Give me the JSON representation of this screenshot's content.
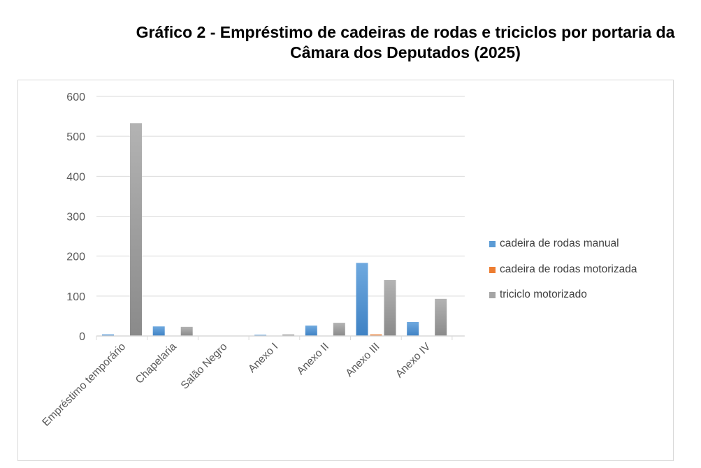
{
  "title_line1": "Gráfico 2 -  Empréstimo de cadeiras de rodas e triciclos por portaria da",
  "title_line2": "Câmara dos Deputados (2025)",
  "chart_data": {
    "type": "bar",
    "categories": [
      "Empréstimo temporário",
      "Chapelaria",
      "Salão Negro",
      "Anexo I",
      "Anexo II",
      "Anexo III",
      "Anexo IV"
    ],
    "series": [
      {
        "name": "cadeira de rodas manual",
        "color": "#5b9bd5",
        "values": [
          4,
          24,
          0,
          3,
          26,
          183,
          35
        ]
      },
      {
        "name": "cadeira de rodas motorizada",
        "color": "#ed7d31",
        "values": [
          0,
          0,
          0,
          0,
          0,
          4,
          0
        ]
      },
      {
        "name": "triciclo motorizado",
        "color": "#a5a5a5",
        "values": [
          533,
          23,
          0,
          4,
          33,
          140,
          93
        ]
      }
    ],
    "yticks": [
      0,
      100,
      200,
      300,
      400,
      500,
      600
    ],
    "ylim": [
      0,
      600
    ],
    "grid": true,
    "legend": "right"
  }
}
